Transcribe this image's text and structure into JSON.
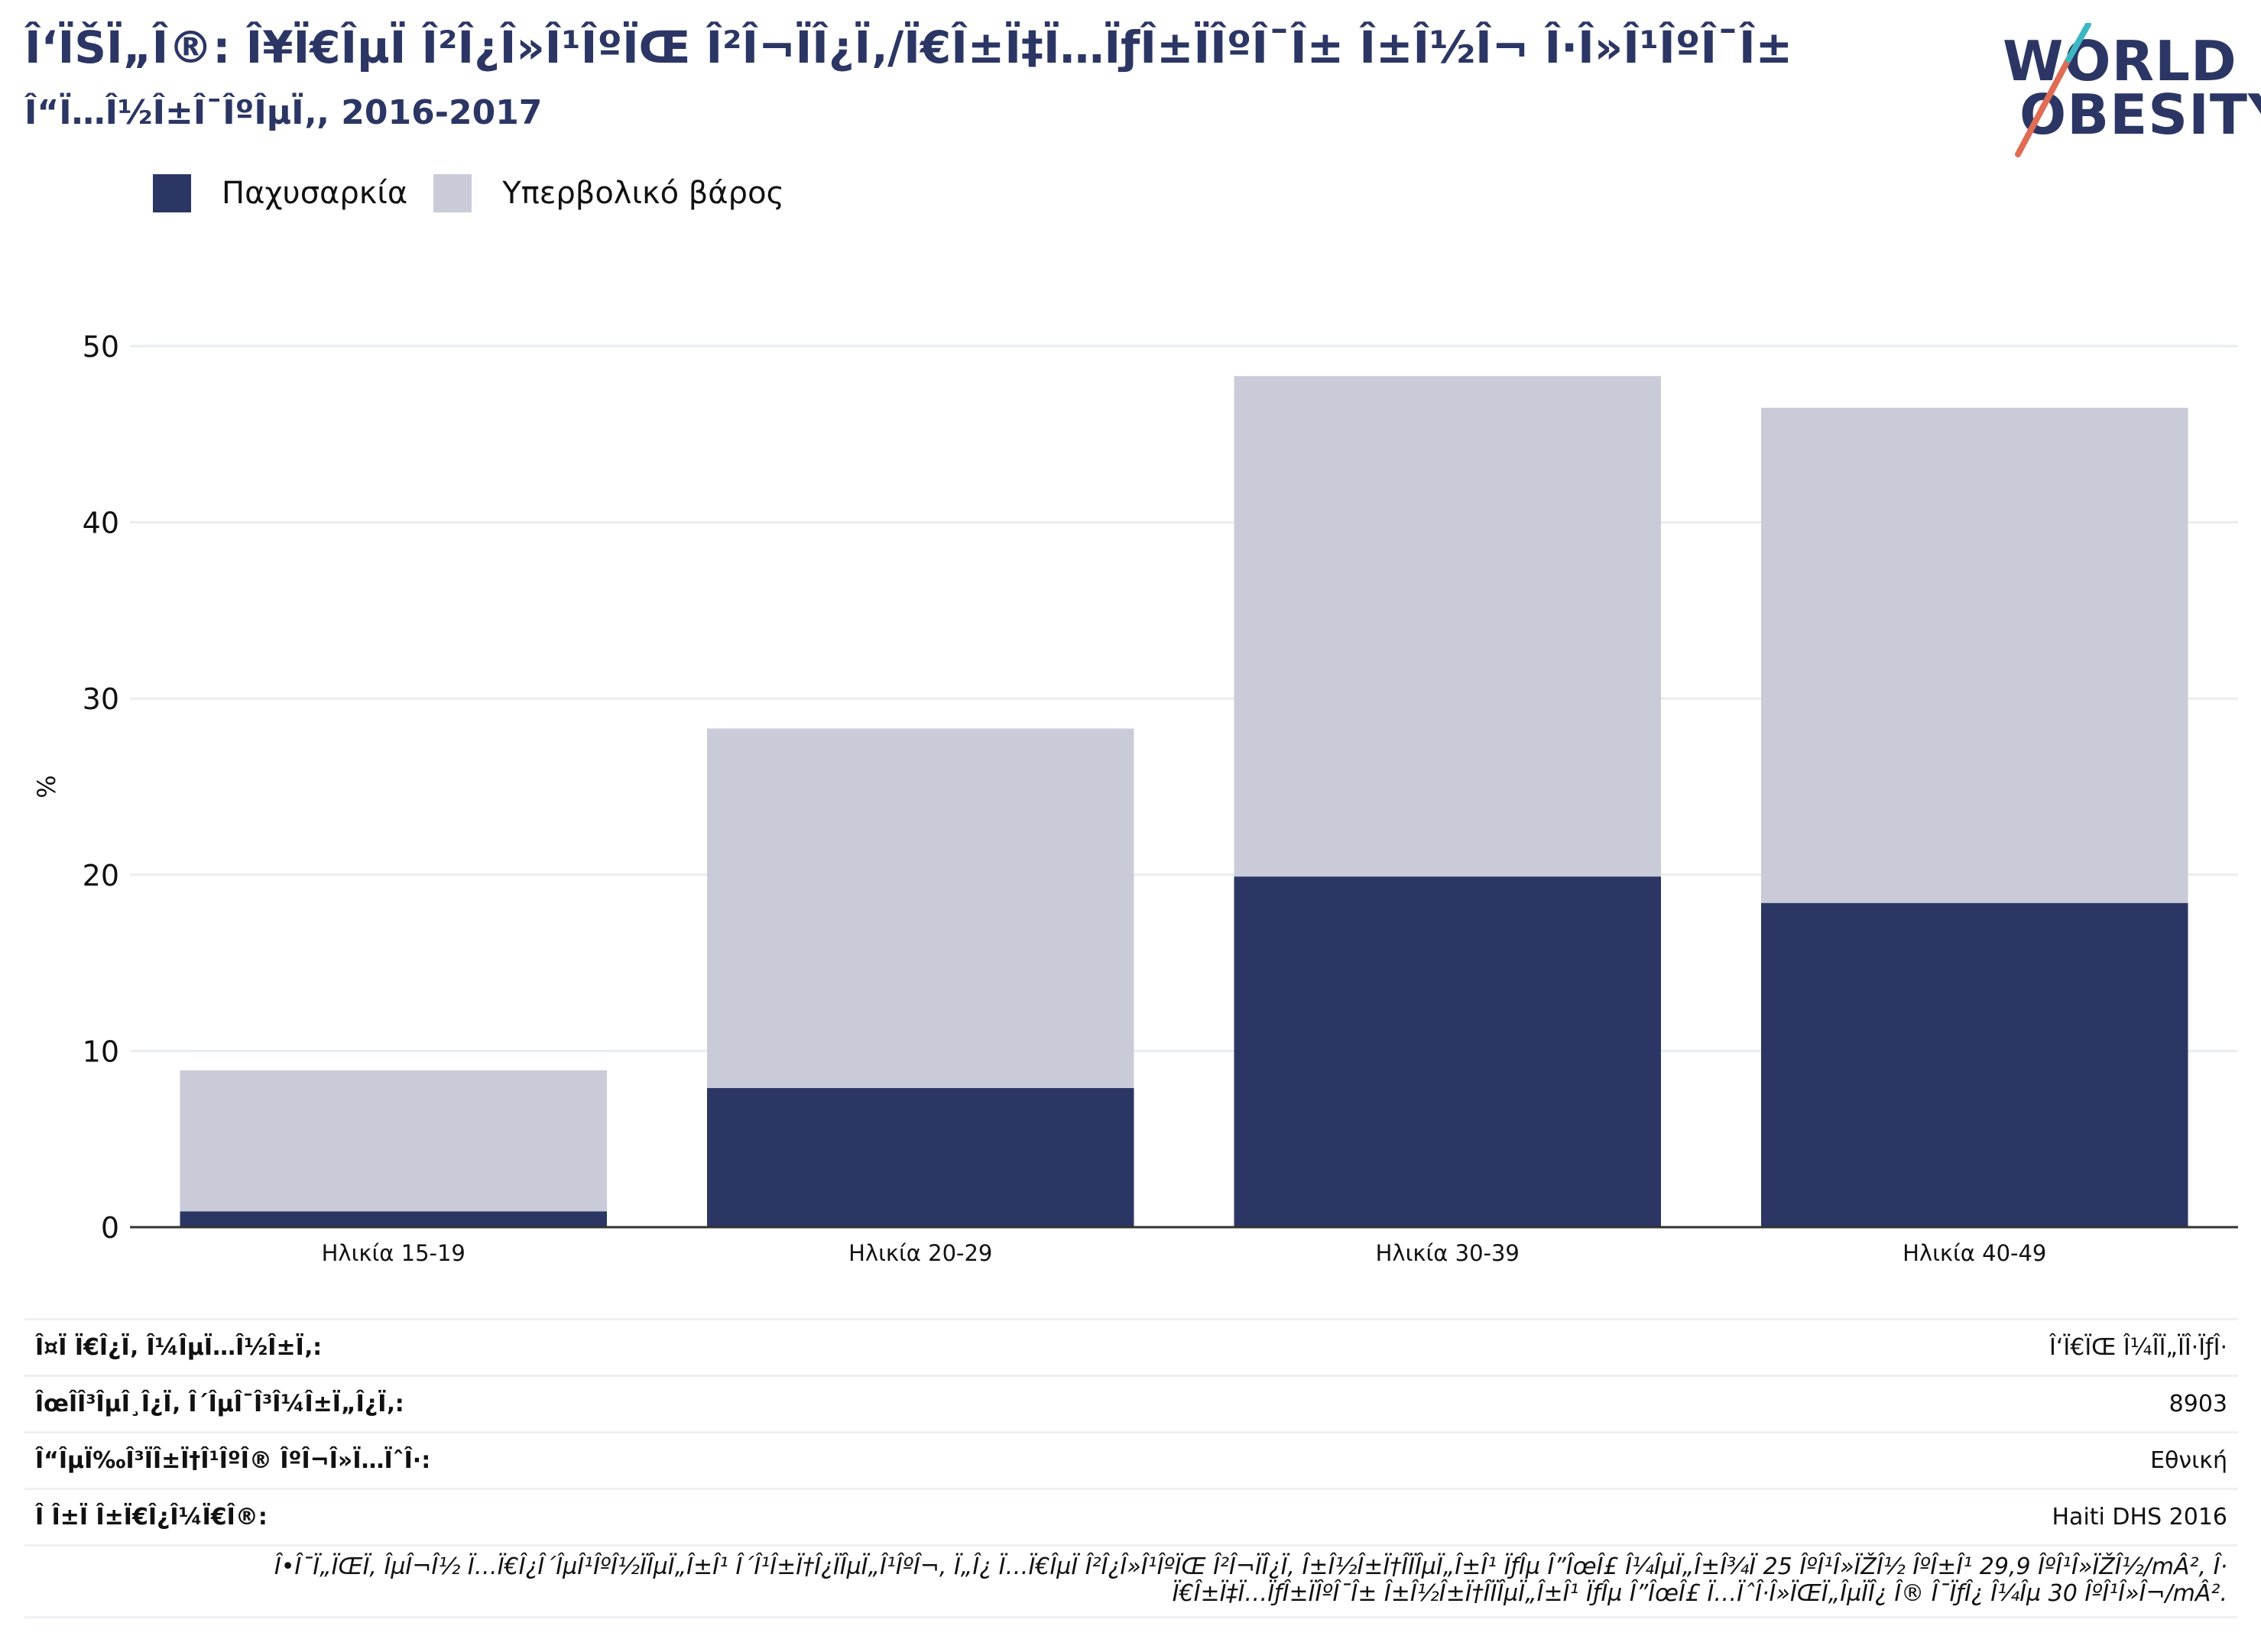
{
  "header": {
    "title": "Î‘ÏŠÏ„Î®: Î¥Ï€ÎµÏ Î²Î¿Î»Î¹ÎºÏŒ Î²Î¬ÏÎ¿Ï‚/Ï€Î±Ï‡Ï…ÏƒÎ±ÏÎºÎ¯Î± Î±Î½Î¬ Î·Î»Î¹ÎºÎ¯Î±",
    "subtitle": "Î“Ï…Î½Î±Î¯ÎºÎµÏ‚, 2016-2017"
  },
  "logo": {
    "line1": "WORLD",
    "line2": "OBESITY",
    "text_color": "#2b3664",
    "slash_colors": [
      "#e06c55",
      "#3bb8c2"
    ]
  },
  "legend": [
    {
      "label": "Παχυσαρκία",
      "color": "#2b3664"
    },
    {
      "label": "Υπερβολικό βάρος",
      "color": "#c9ccd8"
    }
  ],
  "chart_data": {
    "type": "bar",
    "stacked": true,
    "categories": [
      "Ηλικία 15-19",
      "Ηλικία 20-29",
      "Ηλικία 30-39",
      "Ηλικία 40-49"
    ],
    "series": [
      {
        "name": "Παχυσαρκία",
        "color": "#2b3664",
        "values": [
          0.9,
          7.9,
          19.9,
          18.4
        ]
      },
      {
        "name": "Υπερβολικό βάρος",
        "color": "#c9ccd8",
        "values": [
          8.0,
          20.4,
          28.4,
          28.1
        ]
      }
    ],
    "ylabel": "%",
    "ylim": [
      0,
      50
    ],
    "yticks": [
      0,
      10,
      20,
      30,
      40,
      50
    ],
    "grid": true,
    "legend_position": "top-left"
  },
  "info": [
    {
      "label": "Î¤Ï Ï€Î¿Ï‚ Î¼ÎµÏ…Î½Î±Ï‚:",
      "value": "Î‘Ï€ÏŒ Î¼Î­Ï„ÏÎ·ÏƒÎ·"
    },
    {
      "label": "ÎœÎ­Î³ÎµÎ¸Î¿Ï‚ Î´ÎµÎ¯Î³Î¼Î±Ï„Î¿Ï‚:",
      "value": "8903"
    },
    {
      "label": "Î“ÎµÏ‰Î³ÏÎ±Ï†Î¹ÎºÎ® ÎºÎ¬Î»Ï…ÏˆÎ·:",
      "value": "Εθνική"
    },
    {
      "label": "Î Î±Ï Î±Ï€Î¿Î¼Ï€Î®:",
      "value": "Haiti DHS 2016"
    }
  ],
  "footnote": {
    "line1": "Î•Î¯Ï„ÏŒÏ‚ ÎµÎ¬Î½ Ï…Ï€Î¿Î´ÎµÎ¹ÎºÎ½ÏÎµÏ„Î±Î¹ Î´Î¹Î±Ï†Î¿ÏÎµÏ„Î¹ÎºÎ¬, Ï„Î¿ Ï…Ï€ÎµÏ Î²Î¿Î»Î¹ÎºÏŒ Î²Î¬ÏÎ¿Ï‚ Î±Î½Î±Ï†Î­ÏÎµÏ„Î±Î¹ ÏƒÎµ Î”ÎœÎ£ Î¼ÎµÏ„Î±Î¾Ï 25 ÎºÎ¹Î»ÏŽÎ½ ÎºÎ±Î¹ 29,9 ÎºÎ¹Î»ÏŽÎ½/mÂ², Î·",
    "line2": "Ï€Î±Ï‡Ï…ÏƒÎ±ÏÎºÎ¯Î± Î±Î½Î±Ï†Î­ÏÎµÏ„Î±Î¹ ÏƒÎµ Î”ÎœÎ£ Ï…ÏˆÎ·Î»ÏŒÏ„ÎµÏÎ¿ Î® Î¯ÏƒÎ¿ Î¼Îµ 30 ÎºÎ¹Î»Î¬/mÂ²."
  }
}
